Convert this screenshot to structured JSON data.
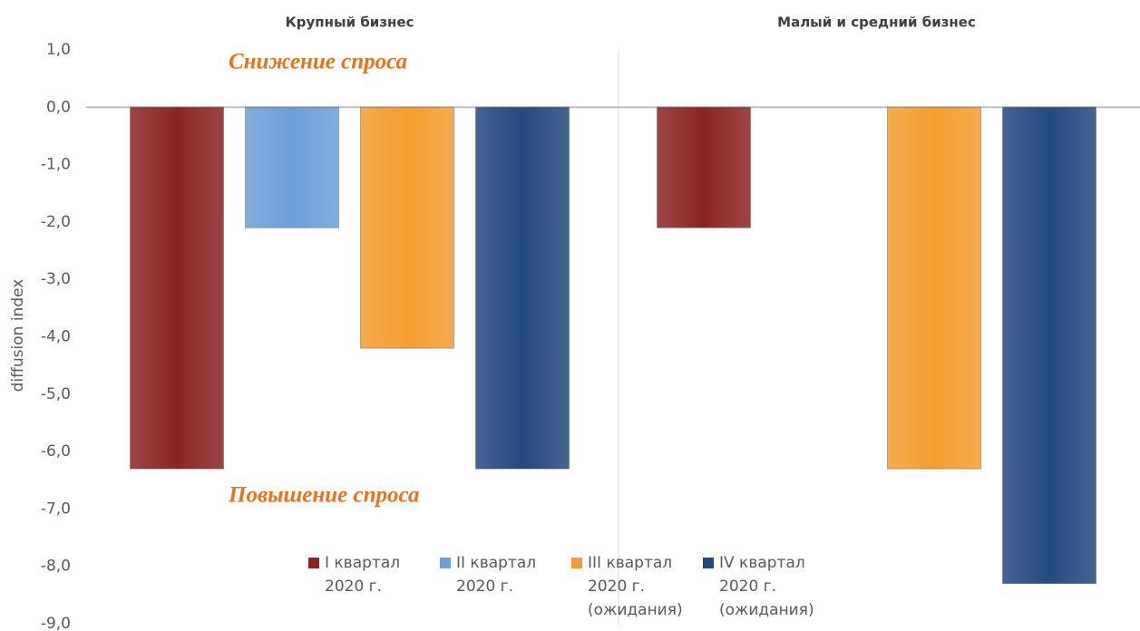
{
  "chart_data": {
    "type": "bar",
    "categories": [
      "Крупный бизнес",
      "Малый и средний бизнес"
    ],
    "series": [
      {
        "name": "I квартал 2020 г.",
        "color": "#8b2424",
        "values": [
          -6.3,
          -2.1
        ]
      },
      {
        "name": "II квартал 2020 г.",
        "color": "#6b9fd9",
        "values": [
          -2.1,
          0
        ]
      },
      {
        "name": "III квартал 2020 г. (ожидания)",
        "color": "#f59d30",
        "values": [
          -4.2,
          -6.3
        ]
      },
      {
        "name": "IV квартал 2020 г. (ожидания)",
        "color": "#24497f",
        "values": [
          -6.3,
          -8.3
        ]
      }
    ],
    "y_label": "diffusion index",
    "annotations": [
      "Снижение спроса",
      "Повышение спроса"
    ],
    "ylim": [
      -9,
      1
    ],
    "yticks": [
      {
        "value": 1,
        "label": "1,0"
      },
      {
        "value": 0,
        "label": "0,0"
      },
      {
        "value": -1,
        "label": "-1,0"
      },
      {
        "value": -2,
        "label": "-2,0"
      },
      {
        "value": -3,
        "label": "-3,0"
      },
      {
        "value": -4,
        "label": "-4,0"
      },
      {
        "value": -5,
        "label": "-5,0"
      },
      {
        "value": -6,
        "label": "-6,0"
      },
      {
        "value": -7,
        "label": "-7,0"
      },
      {
        "value": -8,
        "label": "-8,0"
      },
      {
        "value": -9,
        "label": "-9,0"
      }
    ],
    "legend": "bottom"
  }
}
